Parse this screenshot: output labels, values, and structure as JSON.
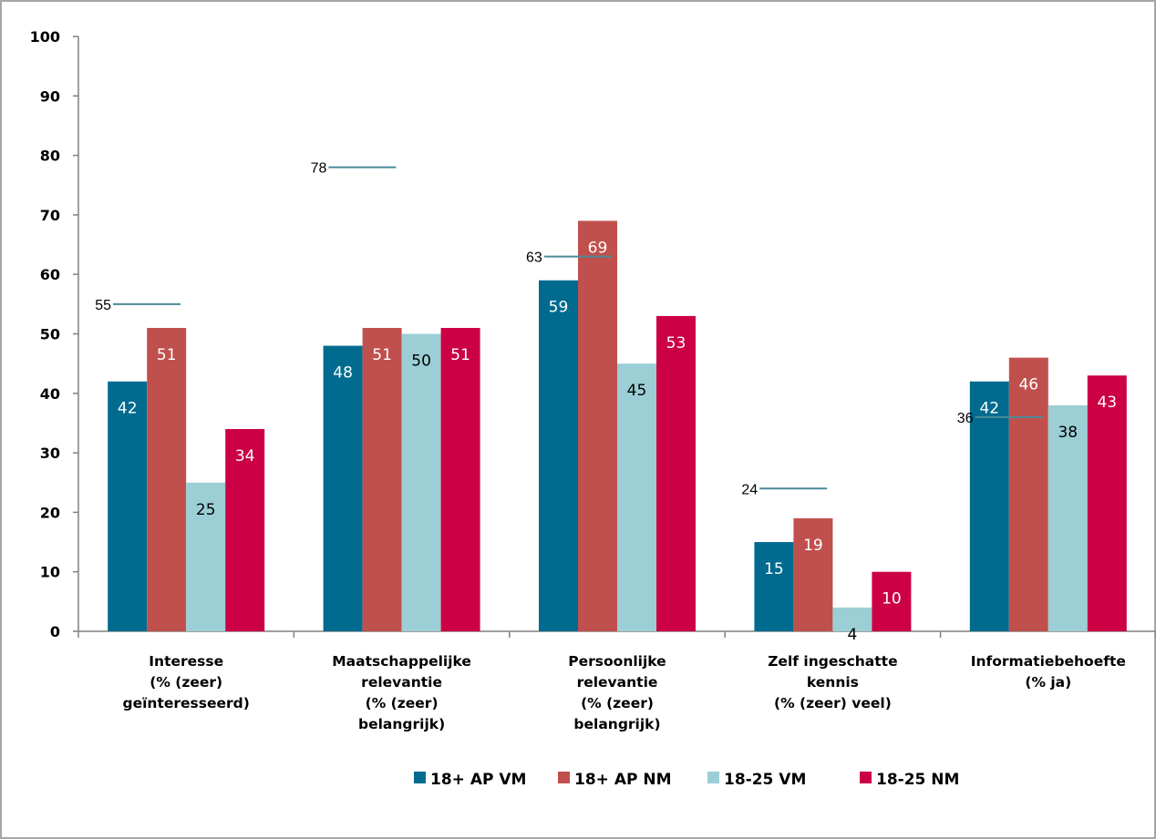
{
  "chart_data": {
    "type": "bar",
    "categories": [
      [
        "Interesse",
        "(% (zeer)",
        "geïnteresseerd)"
      ],
      [
        "Maatschappelijke",
        "relevantie",
        "(% (zeer)",
        "belangrijk)"
      ],
      [
        "Persoonlijke",
        "relevantie",
        "(% (zeer)",
        "belangrijk)"
      ],
      [
        "Zelf ingeschatte",
        "kennis",
        "(% (zeer) veel)"
      ],
      [
        "Informatiebehoefte",
        "(% ja)"
      ]
    ],
    "series": [
      {
        "name": "18+ AP VM",
        "color": "#006b8f",
        "label_color": "#ffffff",
        "values": [
          42,
          48,
          59,
          15,
          42
        ]
      },
      {
        "name": "18+ AP NM",
        "color": "#c0504d",
        "label_color": "#ffffff",
        "values": [
          51,
          51,
          69,
          19,
          46
        ]
      },
      {
        "name": "18-25 VM",
        "color": "#9ccfd5",
        "label_color": "#000000",
        "values": [
          25,
          50,
          45,
          4,
          38
        ]
      },
      {
        "name": "18-25 NM",
        "color": "#cc0044",
        "label_color": "#ffffff",
        "values": [
          34,
          51,
          53,
          10,
          43
        ]
      }
    ],
    "reference_lines": {
      "color": "#4a8a9a",
      "values": [
        55,
        78,
        63,
        24,
        36
      ]
    },
    "yticks": [
      0,
      10,
      20,
      30,
      40,
      50,
      60,
      70,
      80,
      90,
      100
    ],
    "ylim": [
      0,
      100
    ],
    "grid": false,
    "legend_position": "bottom"
  }
}
